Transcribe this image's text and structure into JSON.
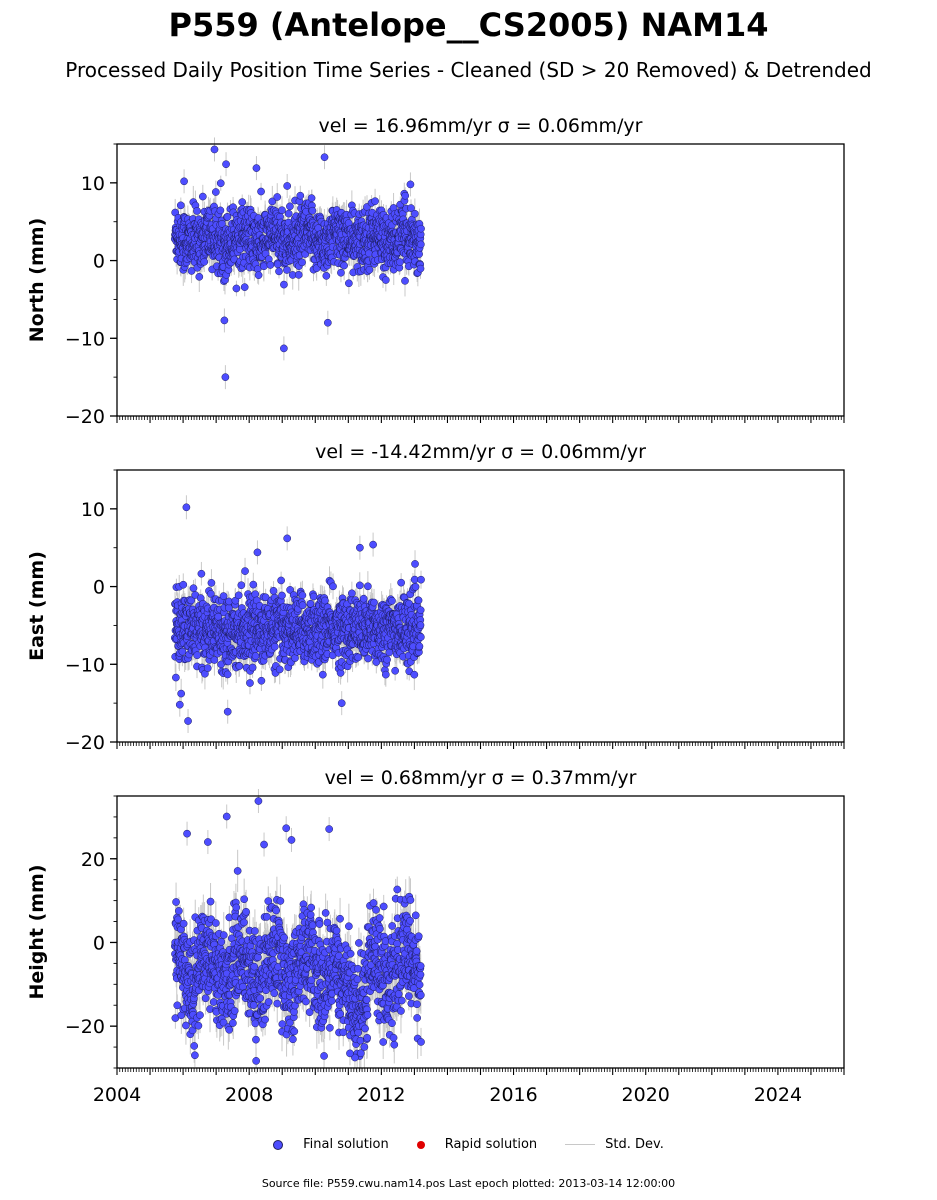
{
  "title": "P559 (Antelope__CS2005) NAM14",
  "subtitle": "Processed Daily Position Time Series - Cleaned (SD > 20 Removed) & Detrended",
  "legend": {
    "final": "Final solution",
    "rapid": "Rapid solution",
    "std": "Std. Dev."
  },
  "footer": "Source file: P559.cwu.nam14.pos  Last epoch plotted: 2013-03-14 12:00:00",
  "colors": {
    "final": "#4d4dff",
    "rapid": "#e00000",
    "std": "#c8c8c8"
  },
  "chart_data": [
    {
      "type": "scatter",
      "component": "north",
      "title": "vel = 16.96mm/yr   σ = 0.06mm/yr",
      "ylabel": "North (mm)",
      "xlim": [
        2004.0,
        2026.0
      ],
      "ylim": [
        -20,
        15
      ],
      "yticks": [
        -20,
        -10,
        0,
        10
      ],
      "data_span": [
        2005.75,
        2013.2
      ],
      "center": 2.8,
      "spread": 2.0,
      "err": 1.5,
      "outliers": [
        [
          2006.03,
          10.2
        ],
        [
          2006.95,
          14.3
        ],
        [
          2007.3,
          12.4
        ],
        [
          2007.28,
          -15.0
        ],
        [
          2008.22,
          11.9
        ],
        [
          2010.28,
          13.3
        ],
        [
          2009.05,
          -11.3
        ],
        [
          2010.38,
          -8.0
        ],
        [
          2007.25,
          -7.7
        ],
        [
          2009.15,
          9.6
        ],
        [
          2012.88,
          9.8
        ]
      ]
    },
    {
      "type": "scatter",
      "component": "east",
      "title": "vel = -14.42mm/yr   σ = 0.06mm/yr",
      "ylabel": "East (mm)",
      "xlim": [
        2004.0,
        2026.0
      ],
      "ylim": [
        -20,
        15
      ],
      "yticks": [
        -20,
        -10,
        0,
        10
      ],
      "data_span": [
        2005.75,
        2013.2
      ],
      "center": -5.5,
      "spread": 2.2,
      "err": 1.5,
      "outliers": [
        [
          2006.1,
          10.2
        ],
        [
          2006.15,
          -17.3
        ],
        [
          2005.9,
          -15.2
        ],
        [
          2009.15,
          6.2
        ],
        [
          2011.75,
          5.4
        ],
        [
          2011.35,
          5.0
        ],
        [
          2007.35,
          -16.1
        ],
        [
          2010.8,
          -15.0
        ],
        [
          2008.25,
          4.4
        ]
      ]
    },
    {
      "type": "scatter",
      "component": "height",
      "title": "vel = 0.68mm/yr   σ = 0.37mm/yr",
      "ylabel": "Height (mm)",
      "xlim": [
        2004.0,
        2026.0
      ],
      "ylim": [
        -30,
        35
      ],
      "yticks": [
        -20,
        0,
        20
      ],
      "xticks": [
        2004,
        2008,
        2012,
        2016,
        2020,
        2024
      ],
      "data_span": [
        2005.75,
        2013.2
      ],
      "center": -6,
      "spread": 6.0,
      "err": 4.0,
      "outliers": [
        [
          2008.28,
          33.8
        ],
        [
          2006.12,
          26.0
        ],
        [
          2007.32,
          30.1
        ],
        [
          2009.12,
          27.3
        ],
        [
          2010.42,
          27.1
        ],
        [
          2006.75,
          24.0
        ],
        [
          2008.45,
          23.4
        ],
        [
          2009.28,
          24.5
        ],
        [
          2011.2,
          -27.5
        ],
        [
          2011.05,
          -26.5
        ]
      ]
    }
  ]
}
